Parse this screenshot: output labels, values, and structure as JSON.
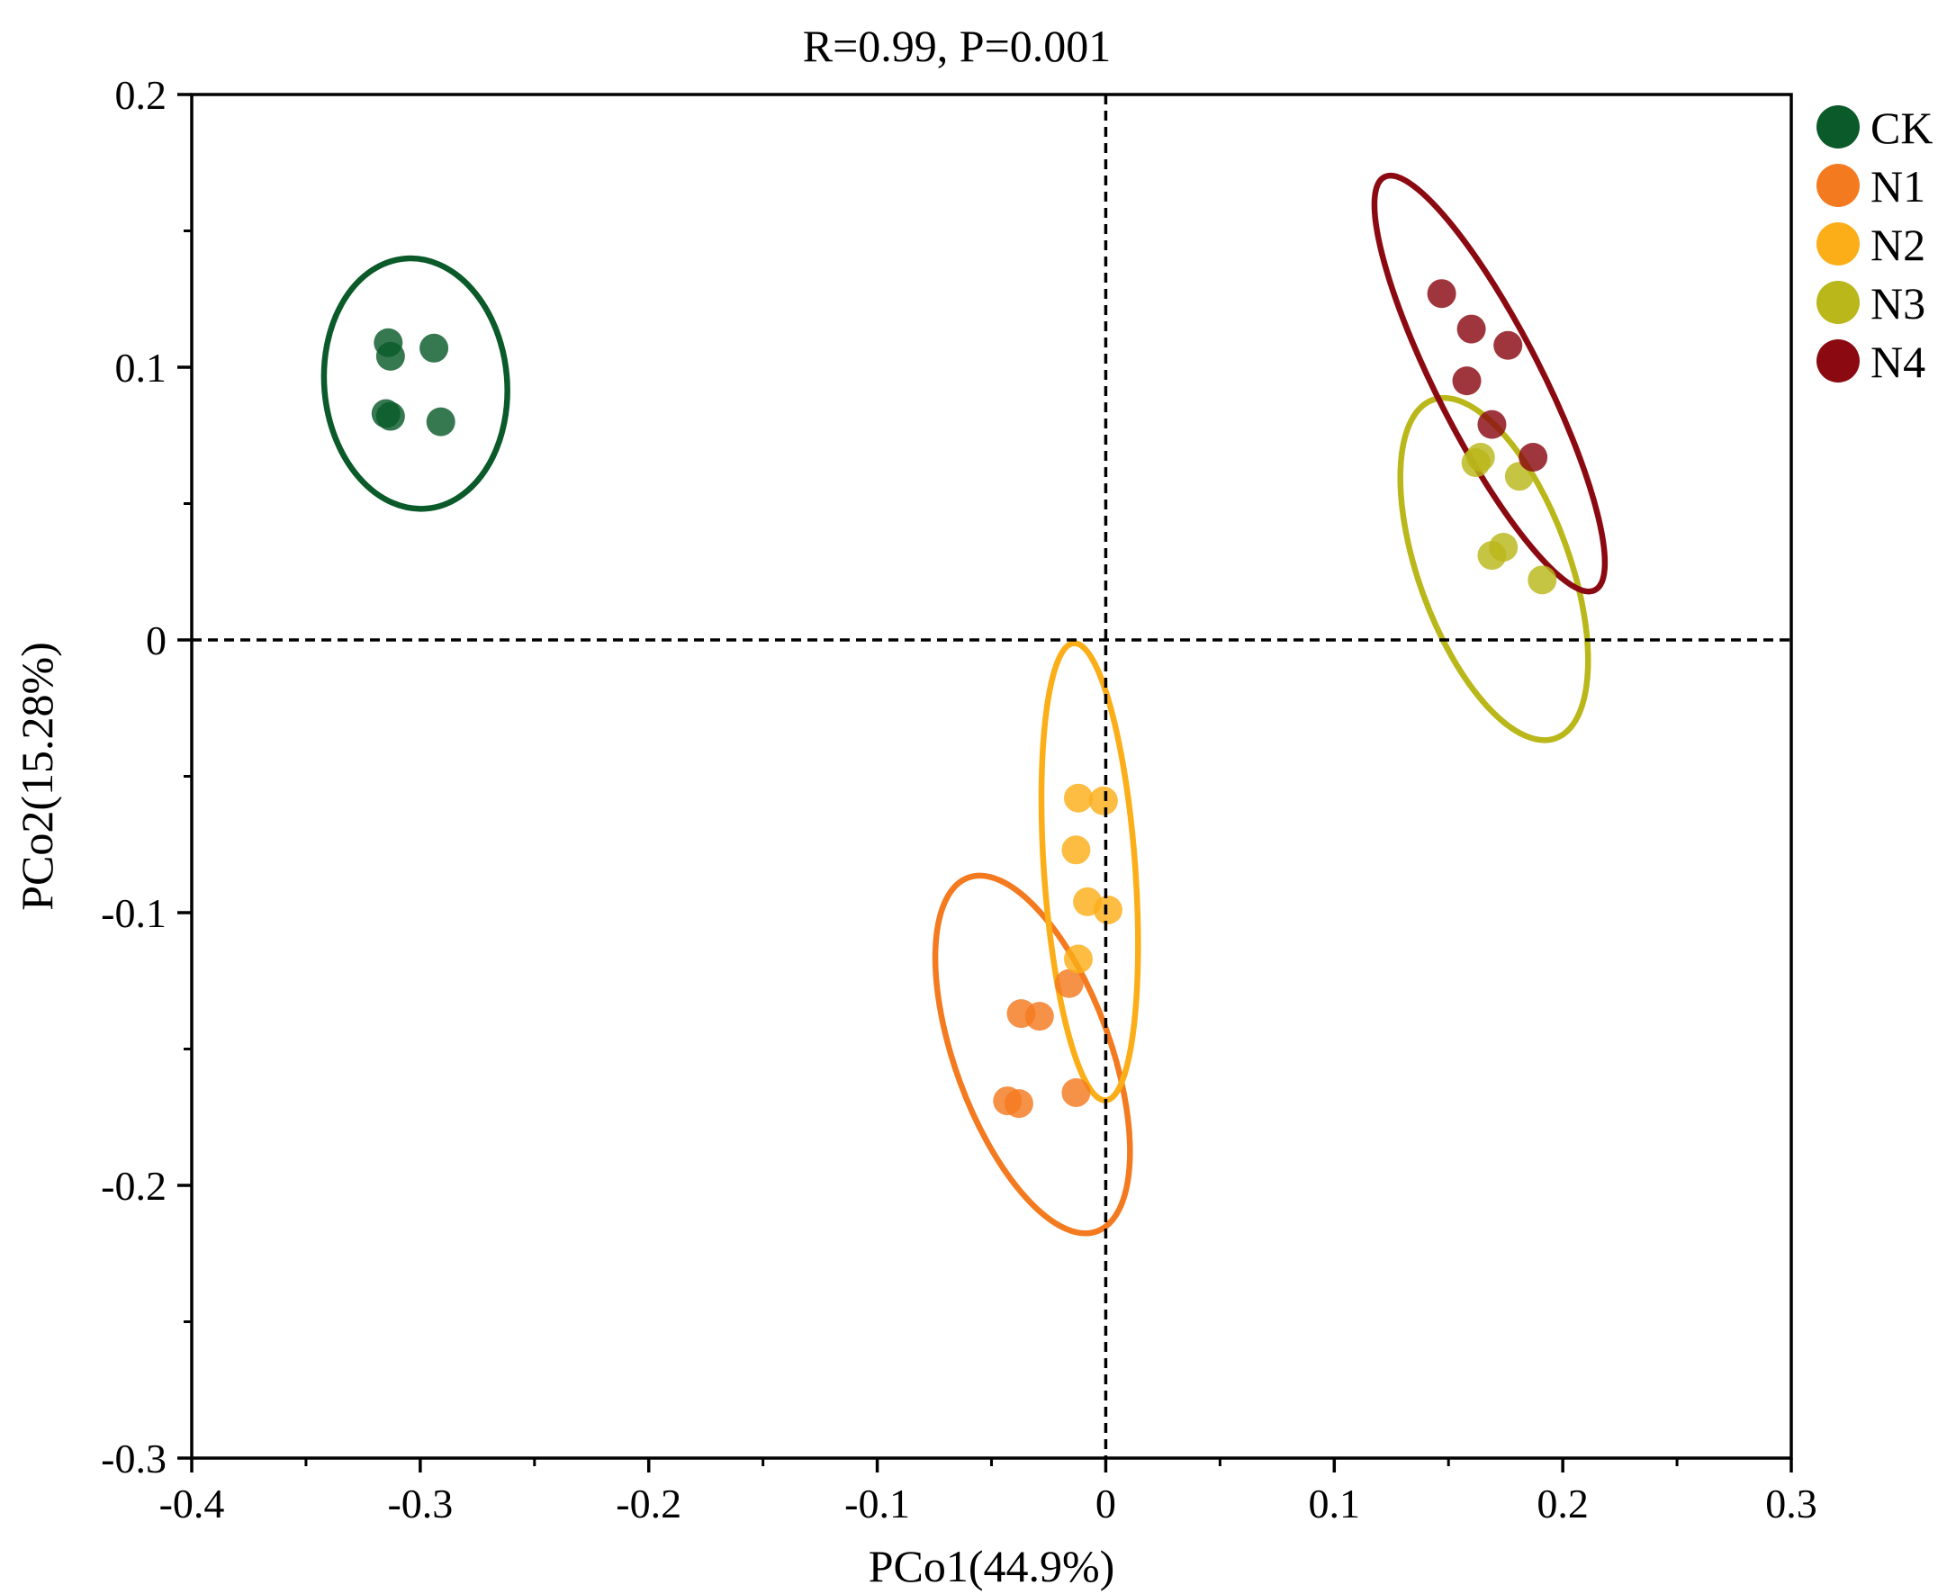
{
  "chart_data": {
    "type": "scatter",
    "title": "R=0.99, P=0.001",
    "xlabel": "PCo1(44.9%)",
    "ylabel": "PCo2(15.28%)",
    "xlim": [
      -0.4,
      0.3
    ],
    "ylim": [
      -0.3,
      0.2
    ],
    "xticks": [
      -0.4,
      -0.3,
      -0.2,
      -0.1,
      0,
      0.1,
      0.2,
      0.3
    ],
    "xtick_labels": [
      "-0.4",
      "-0.3",
      "-0.2",
      "-0.1",
      "0",
      "0.1",
      "0.2",
      "0.3"
    ],
    "yticks": [
      -0.3,
      -0.2,
      -0.1,
      0,
      0.1,
      0.2
    ],
    "ytick_labels": [
      "-0.3",
      "-0.2",
      "-0.1",
      "0",
      "0.1",
      "0.2"
    ],
    "grid": false,
    "reference_lines": {
      "x": 0,
      "y": 0,
      "style": "dashed"
    },
    "legend_position": "right",
    "series": [
      {
        "name": "CK",
        "color": "#0a5a2a",
        "points": [
          [
            -0.314,
            0.109
          ],
          [
            -0.313,
            0.104
          ],
          [
            -0.294,
            0.107
          ],
          [
            -0.315,
            0.083
          ],
          [
            -0.313,
            0.082
          ],
          [
            -0.291,
            0.08
          ]
        ],
        "ellipse": {
          "center": [
            -0.302,
            0.094
          ],
          "rx": 0.04,
          "ry": 0.046,
          "rotation_deg": -5
        }
      },
      {
        "name": "N1",
        "color": "#f47a20",
        "points": [
          [
            -0.016,
            -0.126
          ],
          [
            -0.037,
            -0.137
          ],
          [
            -0.029,
            -0.138
          ],
          [
            -0.043,
            -0.169
          ],
          [
            -0.038,
            -0.17
          ],
          [
            -0.013,
            -0.166
          ]
        ],
        "ellipse": {
          "center": [
            -0.032,
            -0.152
          ],
          "rx": 0.034,
          "ry": 0.069,
          "rotation_deg": -20
        }
      },
      {
        "name": "N2",
        "color": "#fbae18",
        "points": [
          [
            -0.012,
            -0.058
          ],
          [
            -0.001,
            -0.059
          ],
          [
            -0.013,
            -0.077
          ],
          [
            -0.008,
            -0.096
          ],
          [
            0.001,
            -0.099
          ],
          [
            -0.012,
            -0.117
          ]
        ],
        "ellipse": {
          "center": [
            -0.007,
            -0.085
          ],
          "rx": 0.02,
          "ry": 0.084,
          "rotation_deg": -4
        }
      },
      {
        "name": "N3",
        "color": "#b9b71a",
        "points": [
          [
            0.162,
            0.065
          ],
          [
            0.164,
            0.067
          ],
          [
            0.181,
            0.06
          ],
          [
            0.174,
            0.034
          ],
          [
            0.169,
            0.031
          ],
          [
            0.191,
            0.022
          ]
        ],
        "ellipse": {
          "center": [
            0.17,
            0.026
          ],
          "rx": 0.033,
          "ry": 0.066,
          "rotation_deg": -20
        }
      },
      {
        "name": "N4",
        "color": "#8b0a12",
        "points": [
          [
            0.147,
            0.127
          ],
          [
            0.16,
            0.114
          ],
          [
            0.176,
            0.108
          ],
          [
            0.158,
            0.095
          ],
          [
            0.169,
            0.079
          ],
          [
            0.187,
            0.067
          ]
        ],
        "ellipse": {
          "center": [
            0.168,
            0.094
          ],
          "rx": 0.023,
          "ry": 0.085,
          "rotation_deg": -27
        }
      }
    ]
  }
}
